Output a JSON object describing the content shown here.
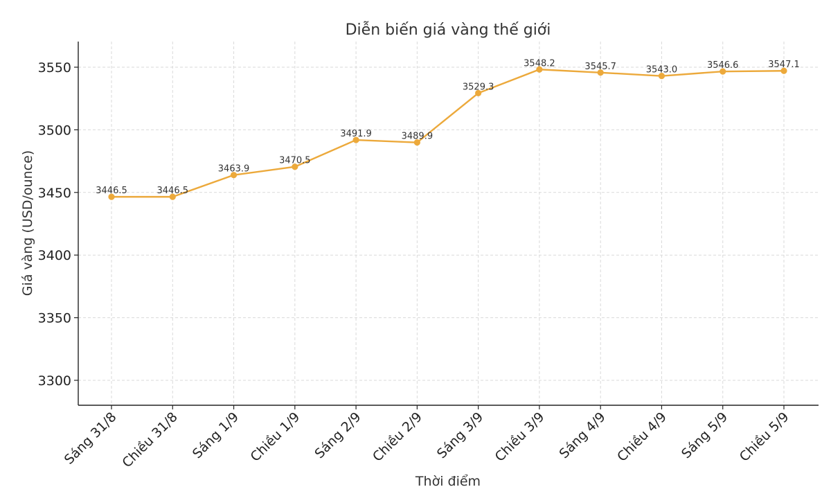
{
  "chart_data": {
    "type": "line",
    "title": "Diễn biến giá vàng thế giới",
    "xlabel": "Thời điểm",
    "ylabel": "Giá vàng (USD/ounce)",
    "categories": [
      "Sáng 31/8",
      "Chiều 31/8",
      "Sáng 1/9",
      "Chiều 1/9",
      "Sáng 2/9",
      "Chiều 2/9",
      "Sáng 3/9",
      "Chiều 3/9",
      "Sáng 4/9",
      "Chiều 4/9",
      "Sáng 5/9",
      "Chiều 5/9"
    ],
    "values": [
      3446.5,
      3446.5,
      3463.9,
      3470.5,
      3491.9,
      3489.9,
      3529.3,
      3548.2,
      3545.7,
      3543.0,
      3546.6,
      3547.1
    ],
    "value_labels": [
      "3446.5",
      "3446.5",
      "3463.9",
      "3470.5",
      "3491.9",
      "3489.9",
      "3529.3",
      "3548.2",
      "3545.7",
      "3543.0",
      "3546.6",
      "3547.1"
    ],
    "yticks": [
      3300,
      3350,
      3400,
      3450,
      3500,
      3550
    ],
    "ylim": [
      3280,
      3570
    ],
    "grid": true,
    "color": "#ECA93B"
  }
}
